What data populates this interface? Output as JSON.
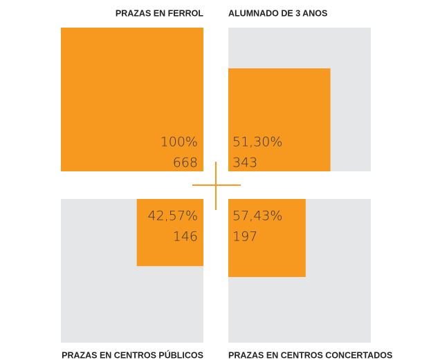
{
  "chart_data": {
    "type": "squares",
    "categories": [
      "PRAZAS EN FERROL",
      "ALUMNADO DE 3 ANOS",
      "PRAZAS EN CENTROS PÚBLICOS",
      "PRAZAS EN CENTROS CONCERTADOS"
    ],
    "values": [
      100,
      51.3,
      42.57,
      57.43
    ],
    "value_labels": [
      "100%",
      "51,30%",
      "42,57%",
      "57,43%"
    ],
    "counts": [
      668,
      343,
      146,
      197
    ],
    "color": "#f7991e",
    "background": "#e5e6e7"
  }
}
